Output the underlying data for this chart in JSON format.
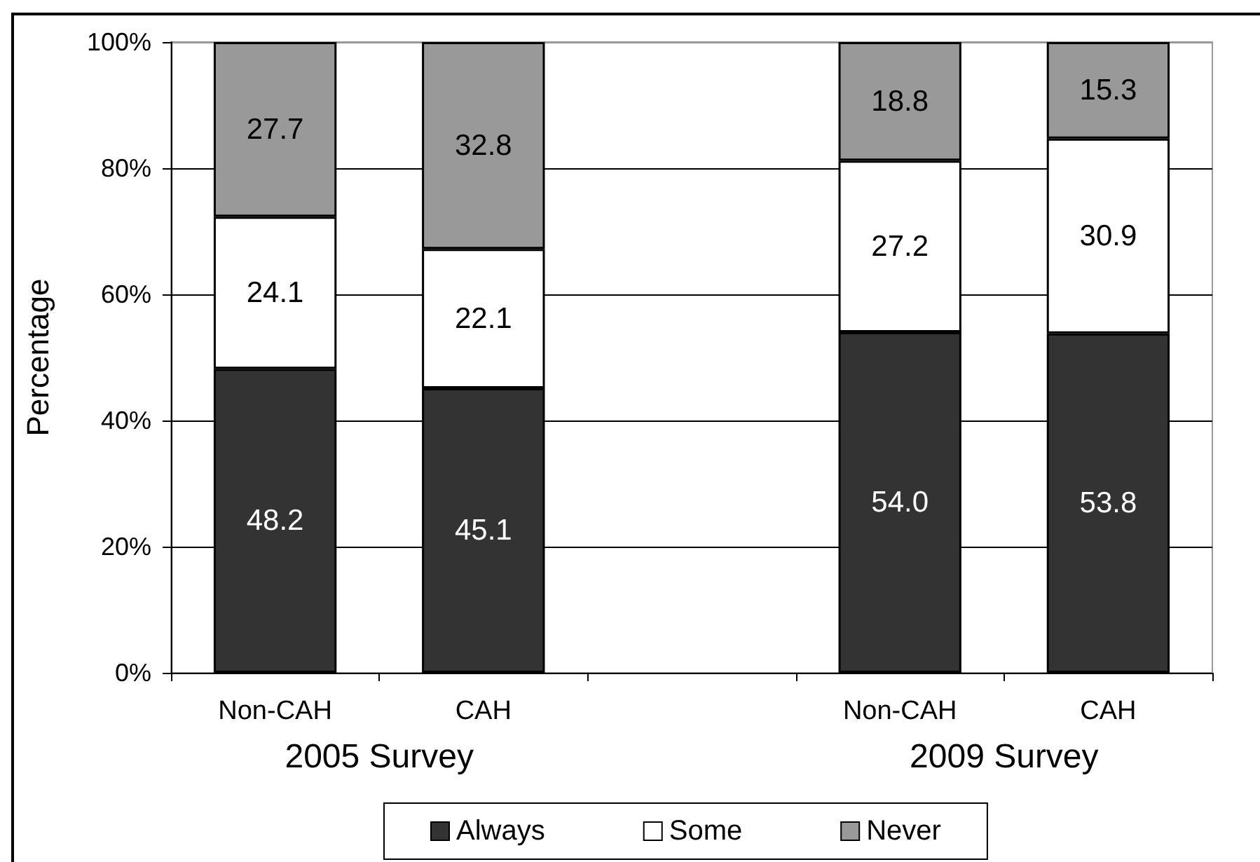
{
  "chart_data": {
    "type": "bar",
    "stacked": true,
    "ylabel": "Percentage",
    "categories": [
      "Non-CAH",
      "CAH",
      null,
      "Non-CAH",
      "CAH"
    ],
    "series": [
      {
        "name": "Always",
        "color": "#333333",
        "values": [
          48.2,
          45.1,
          null,
          54.0,
          53.8
        ],
        "value_labels": [
          "48.2",
          "45.1",
          null,
          "54.0",
          "53.8"
        ]
      },
      {
        "name": "Some",
        "color": "#ffffff",
        "values": [
          24.1,
          22.1,
          null,
          27.2,
          30.9
        ],
        "value_labels": [
          "24.1",
          "22.1",
          null,
          "27.2",
          "30.9"
        ]
      },
      {
        "name": "Never",
        "color": "#999999",
        "values": [
          27.7,
          32.8,
          null,
          18.8,
          15.3
        ],
        "value_labels": [
          "27.7",
          "32.8",
          null,
          "18.8",
          "15.3"
        ]
      }
    ],
    "ylim": [
      0,
      100
    ],
    "yticks": [
      {
        "value": 0,
        "label": "0%"
      },
      {
        "value": 20,
        "label": "20%"
      },
      {
        "value": 40,
        "label": "40%"
      },
      {
        "value": 60,
        "label": "60%"
      },
      {
        "value": 80,
        "label": "80%"
      },
      {
        "value": 100,
        "label": "100%"
      }
    ],
    "grid": "y",
    "legend": "bottom",
    "annotations": [
      "2005 Survey",
      "2009 Survey"
    ]
  }
}
